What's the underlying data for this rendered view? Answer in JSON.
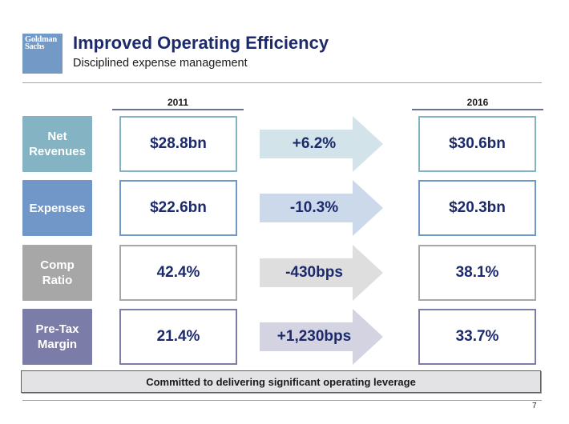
{
  "header": {
    "logo_line1": "Goldman",
    "logo_line2": "Sachs",
    "title": "Improved Operating Efficiency",
    "subtitle": "Disciplined expense management"
  },
  "columns": {
    "start_year": "2011",
    "end_year": "2016"
  },
  "rows": [
    {
      "label": "Net Revenues",
      "label_color": "#84b3c4",
      "start": "$28.8bn",
      "change": "+6.2%",
      "end": "$30.6bn",
      "border_color": "#84b3c4",
      "arrow_color": "#d2e3ea"
    },
    {
      "label": "Expenses",
      "label_color": "#7097c7",
      "start": "$22.6bn",
      "change": "-10.3%",
      "end": "$20.3bn",
      "border_color": "#7097c7",
      "arrow_color": "#ccd9ea"
    },
    {
      "label": "Comp Ratio",
      "label_color": "#a7a7a7",
      "start": "42.4%",
      "change": "-430bps",
      "end": "38.1%",
      "border_color": "#a7a7a7",
      "arrow_color": "#dedede"
    },
    {
      "label": "Pre-Tax Margin",
      "label_color": "#7c7ca8",
      "start": "21.4%",
      "change": "+1,230bps",
      "end": "33.7%",
      "border_color": "#7c7ca8",
      "arrow_color": "#d3d3e2"
    }
  ],
  "footer": {
    "banner": "Committed to delivering significant operating leverage",
    "page_number": "7"
  }
}
